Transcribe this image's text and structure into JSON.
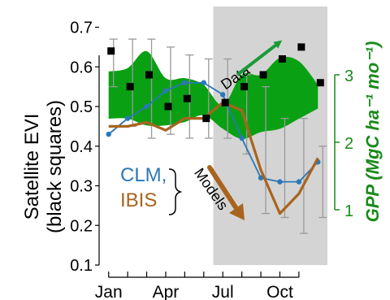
{
  "chart_data": {
    "type": "line",
    "left_axis": {
      "label_line1": "Satellite EVI",
      "label_line2": "(black squares)",
      "ticks": [
        "0.1",
        "0.2",
        "0.3",
        "0.4",
        "0.5",
        "0.6",
        "0.7"
      ],
      "tick_values": [
        0.1,
        0.2,
        0.3,
        0.4,
        0.5,
        0.6,
        0.7
      ],
      "ylim": [
        0.1,
        0.74
      ]
    },
    "right_axis": {
      "label": "GPP (MgC ha⁻¹ mo⁻¹)",
      "ticks": [
        "1",
        "2",
        "3"
      ],
      "tick_values": [
        1,
        2,
        3
      ],
      "color": "#1a8a1a"
    },
    "x_axis": {
      "ticks": [
        "Jan",
        "Apr",
        "Jul",
        "Oct"
      ],
      "tick_months": [
        1,
        4,
        7,
        10
      ],
      "xlim": [
        0.5,
        12.5
      ]
    },
    "shaded_region": {
      "from_month": 6.5,
      "to_month": 12.5,
      "color": "#d4d4d4"
    },
    "months": [
      1,
      2,
      3,
      4,
      5,
      6,
      7,
      8,
      9,
      10,
      11,
      12
    ],
    "evi_squares": [
      0.64,
      0.55,
      0.58,
      0.5,
      0.52,
      0.47,
      0.51,
      0.55,
      0.58,
      0.62,
      0.65,
      0.56
    ],
    "error_bars_lo": [
      0.55,
      0.45,
      0.42,
      0.43,
      0.42,
      0.42,
      0.42,
      0.38,
      0.23,
      0.22,
      0.18,
      0.22
    ],
    "error_bars_hi": [
      0.67,
      0.67,
      0.67,
      0.65,
      0.63,
      0.62,
      0.62,
      0.58,
      0.55,
      0.47,
      0.47,
      0.4
    ],
    "data_band": {
      "color": "#0aa014",
      "upper": [
        3.05,
        3.1,
        3.35,
        2.95,
        2.95,
        2.85,
        2.55,
        3.0,
        3.0,
        3.25,
        3.2,
        2.85
      ],
      "lower": [
        2.35,
        2.35,
        2.25,
        2.25,
        2.3,
        2.4,
        2.2,
        2.05,
        2.15,
        2.2,
        2.35,
        2.5
      ]
    },
    "series": [
      {
        "name": "CLM",
        "color": "#2a77b8",
        "marker": true,
        "values": [
          0.43,
          0.47,
          0.5,
          0.54,
          0.56,
          0.56,
          0.53,
          0.42,
          0.32,
          0.31,
          0.31,
          0.36
        ]
      },
      {
        "name": "IBIS",
        "color": "#a8641e",
        "marker": false,
        "values": [
          0.45,
          0.45,
          0.46,
          0.44,
          0.47,
          0.47,
          0.51,
          0.49,
          0.34,
          0.23,
          0.28,
          0.37
        ]
      }
    ],
    "annotations": {
      "data_label": "Data",
      "models_label": "Models",
      "clm_label": "CLM,",
      "ibis_label": "IBIS"
    }
  }
}
